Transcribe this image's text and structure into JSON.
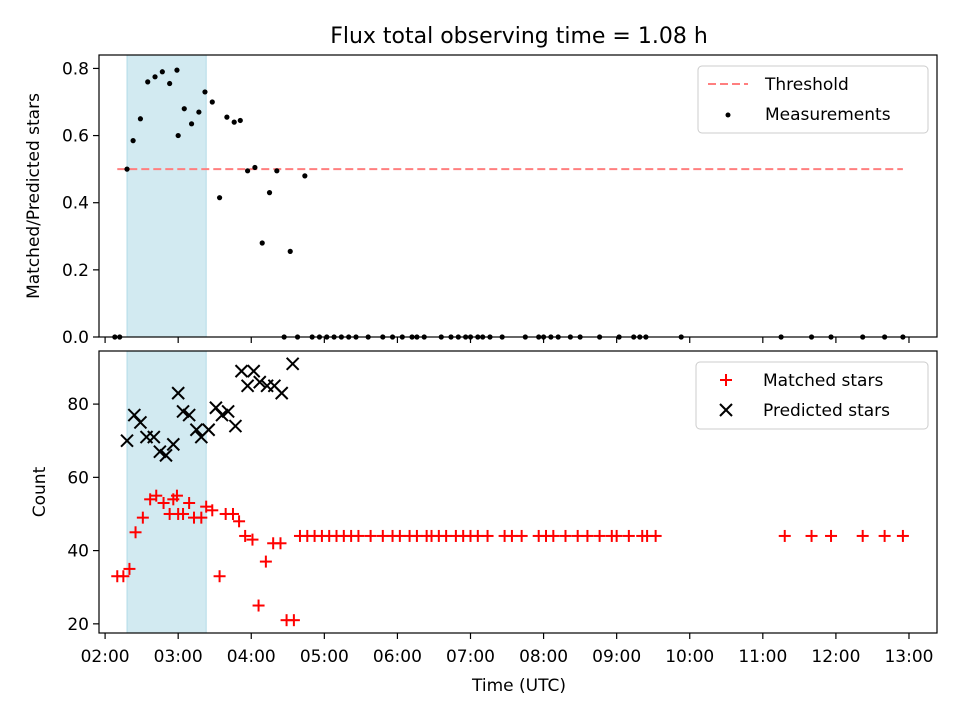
{
  "figure": {
    "title": "Flux total observing time = 1.08 h",
    "xlabel": "Time (UTC)"
  },
  "chart_data": [
    {
      "type": "scatter",
      "ylabel": "Matched/Predicted stars",
      "xlim": [
        "01:55",
        "13:23"
      ],
      "ylim": [
        0,
        0.84
      ],
      "x_ticks": [
        "02:00",
        "03:00",
        "04:00",
        "05:00",
        "06:00",
        "07:00",
        "08:00",
        "09:00",
        "10:00",
        "11:00",
        "12:00",
        "13:00"
      ],
      "y_ticks": [
        "0.0",
        "0.2",
        "0.4",
        "0.6",
        "0.8"
      ],
      "y_tick_values": [
        0,
        0.2,
        0.4,
        0.6,
        0.8
      ],
      "legend": {
        "position": "top-right",
        "entries": [
          "Threshold",
          "Measurements"
        ]
      },
      "shaded_interval": {
        "start": "02:18",
        "end": "03:23",
        "color": "#add8e6"
      },
      "threshold": {
        "name": "Threshold",
        "value": 0.5,
        "x_start": "02:10",
        "x_end": "12:55",
        "color": "#ff7f7f"
      },
      "measurements": {
        "name": "Measurements",
        "color": "#000000",
        "points": [
          [
            "02:08",
            0
          ],
          [
            "02:12",
            0
          ],
          [
            "02:18",
            0.5
          ],
          [
            "02:23",
            0.585
          ],
          [
            "02:29",
            0.65
          ],
          [
            "02:35",
            0.76
          ],
          [
            "02:41",
            0.775
          ],
          [
            "02:47",
            0.79
          ],
          [
            "02:53",
            0.755
          ],
          [
            "02:59",
            0.795
          ],
          [
            "03:00",
            0.6
          ],
          [
            "03:05",
            0.68
          ],
          [
            "03:11",
            0.635
          ],
          [
            "03:17",
            0.67
          ],
          [
            "03:22",
            0.73
          ],
          [
            "03:28",
            0.7
          ],
          [
            "03:34",
            0.415
          ],
          [
            "03:40",
            0.655
          ],
          [
            "03:46",
            0.64
          ],
          [
            "03:51",
            0.645
          ],
          [
            "03:57",
            0.495
          ],
          [
            "04:03",
            0.505
          ],
          [
            "04:09",
            0.28
          ],
          [
            "04:15",
            0.43
          ],
          [
            "04:21",
            0.495
          ],
          [
            "04:27",
            0
          ],
          [
            "04:32",
            0.255
          ],
          [
            "04:38",
            0
          ],
          [
            "04:44",
            0.48
          ],
          [
            "04:50",
            0
          ],
          [
            "04:56",
            0
          ],
          [
            "05:02",
            0
          ],
          [
            "05:08",
            0
          ],
          [
            "05:14",
            0
          ],
          [
            "05:20",
            0
          ],
          [
            "05:26",
            0
          ],
          [
            "05:36",
            0
          ],
          [
            "05:48",
            0
          ],
          [
            "05:56",
            0
          ],
          [
            "06:04",
            0
          ],
          [
            "06:12",
            0
          ],
          [
            "06:16",
            0
          ],
          [
            "06:22",
            0
          ],
          [
            "06:36",
            0
          ],
          [
            "06:44",
            0
          ],
          [
            "06:50",
            0
          ],
          [
            "06:56",
            0
          ],
          [
            "07:00",
            0
          ],
          [
            "07:06",
            0
          ],
          [
            "07:10",
            0
          ],
          [
            "07:16",
            0
          ],
          [
            "07:26",
            0
          ],
          [
            "07:45",
            0
          ],
          [
            "07:56",
            0
          ],
          [
            "08:00",
            0
          ],
          [
            "08:06",
            0
          ],
          [
            "08:12",
            0
          ],
          [
            "08:22",
            0
          ],
          [
            "08:30",
            0
          ],
          [
            "08:46",
            0
          ],
          [
            "09:02",
            0
          ],
          [
            "09:14",
            0
          ],
          [
            "09:19",
            0
          ],
          [
            "09:24",
            0
          ],
          [
            "09:53",
            0
          ],
          [
            "11:15",
            0
          ],
          [
            "11:40",
            0
          ],
          [
            "11:56",
            0
          ],
          [
            "12:22",
            0
          ],
          [
            "12:40",
            0
          ],
          [
            "12:55",
            0
          ]
        ]
      }
    },
    {
      "type": "scatter",
      "ylabel": "Count",
      "xlim": [
        "01:55",
        "13:23"
      ],
      "ylim": [
        17.5,
        94.5
      ],
      "x_ticks": [
        "02:00",
        "03:00",
        "04:00",
        "05:00",
        "06:00",
        "07:00",
        "08:00",
        "09:00",
        "10:00",
        "11:00",
        "12:00",
        "13:00"
      ],
      "y_ticks": [
        "20",
        "40",
        "60",
        "80"
      ],
      "y_tick_values": [
        20,
        40,
        60,
        80
      ],
      "legend": {
        "position": "top-right",
        "entries": [
          "Matched stars",
          "Predicted stars"
        ]
      },
      "shaded_interval": {
        "start": "02:18",
        "end": "03:23",
        "color": "#add8e6"
      },
      "series": [
        {
          "name": "Matched stars",
          "marker": "+",
          "color": "#ff0000",
          "points": [
            [
              "02:10",
              33
            ],
            [
              "02:15",
              33
            ],
            [
              "02:20",
              35
            ],
            [
              "02:25",
              45
            ],
            [
              "02:31",
              49
            ],
            [
              "02:37",
              54
            ],
            [
              "02:42",
              55
            ],
            [
              "02:48",
              53
            ],
            [
              "02:53",
              50
            ],
            [
              "02:56",
              54
            ],
            [
              "02:59",
              55
            ],
            [
              "03:00",
              50
            ],
            [
              "03:04",
              50
            ],
            [
              "03:09",
              53
            ],
            [
              "03:13",
              49
            ],
            [
              "03:19",
              49
            ],
            [
              "03:23",
              52
            ],
            [
              "03:28",
              51
            ],
            [
              "03:34",
              33
            ],
            [
              "03:39",
              50
            ],
            [
              "03:45",
              50
            ],
            [
              "03:50",
              48
            ],
            [
              "03:55",
              44
            ],
            [
              "04:01",
              43
            ],
            [
              "04:06",
              25
            ],
            [
              "04:12",
              37
            ],
            [
              "04:18",
              42
            ],
            [
              "04:24",
              42
            ],
            [
              "04:29",
              21
            ],
            [
              "04:35",
              21
            ],
            [
              "04:40",
              44
            ],
            [
              "04:46",
              44
            ],
            [
              "04:52",
              44
            ],
            [
              "04:58",
              44
            ],
            [
              "05:04",
              44
            ],
            [
              "05:10",
              44
            ],
            [
              "05:16",
              44
            ],
            [
              "05:22",
              44
            ],
            [
              "05:28",
              44
            ],
            [
              "05:38",
              44
            ],
            [
              "05:48",
              44
            ],
            [
              "05:56",
              44
            ],
            [
              "06:02",
              44
            ],
            [
              "06:10",
              44
            ],
            [
              "06:16",
              44
            ],
            [
              "06:24",
              44
            ],
            [
              "06:28",
              44
            ],
            [
              "06:34",
              44
            ],
            [
              "06:40",
              44
            ],
            [
              "06:48",
              44
            ],
            [
              "06:54",
              44
            ],
            [
              "07:00",
              44
            ],
            [
              "07:06",
              44
            ],
            [
              "07:14",
              44
            ],
            [
              "07:28",
              44
            ],
            [
              "07:34",
              44
            ],
            [
              "07:42",
              44
            ],
            [
              "07:56",
              44
            ],
            [
              "08:02",
              44
            ],
            [
              "08:08",
              44
            ],
            [
              "08:18",
              44
            ],
            [
              "08:28",
              44
            ],
            [
              "08:36",
              44
            ],
            [
              "08:46",
              44
            ],
            [
              "08:56",
              44
            ],
            [
              "09:00",
              44
            ],
            [
              "09:10",
              44
            ],
            [
              "09:21",
              44
            ],
            [
              "09:25",
              44
            ],
            [
              "09:32",
              44
            ],
            [
              "11:18",
              44
            ],
            [
              "11:40",
              44
            ],
            [
              "11:56",
              44
            ],
            [
              "12:22",
              44
            ],
            [
              "12:40",
              44
            ],
            [
              "12:55",
              44
            ]
          ]
        },
        {
          "name": "Predicted stars",
          "marker": "x",
          "color": "#000000",
          "points": [
            [
              "02:18",
              70
            ],
            [
              "02:24",
              77
            ],
            [
              "02:29",
              75
            ],
            [
              "02:34",
              71
            ],
            [
              "02:40",
              71
            ],
            [
              "02:45",
              67
            ],
            [
              "02:50",
              66
            ],
            [
              "02:56",
              69
            ],
            [
              "03:00",
              83
            ],
            [
              "03:04",
              78
            ],
            [
              "03:09",
              77
            ],
            [
              "03:15",
              73
            ],
            [
              "03:19",
              71
            ],
            [
              "03:25",
              73
            ],
            [
              "03:31",
              79
            ],
            [
              "03:36",
              77
            ],
            [
              "03:41",
              78
            ],
            [
              "03:47",
              74
            ],
            [
              "03:52",
              89
            ],
            [
              "03:57",
              85
            ],
            [
              "04:02",
              89
            ],
            [
              "04:07",
              86
            ],
            [
              "04:13",
              85
            ],
            [
              "04:19",
              85
            ],
            [
              "04:25",
              83
            ],
            [
              "04:34",
              91
            ]
          ]
        }
      ]
    }
  ]
}
